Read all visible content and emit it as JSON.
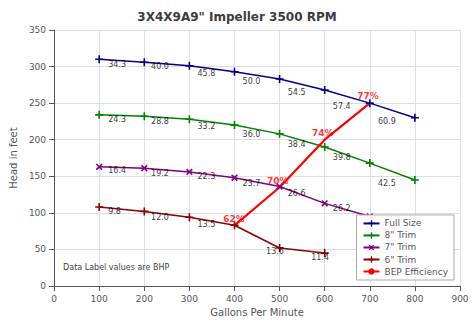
{
  "chart_data": {
    "type": "line",
    "title": "3X4X9A9\" Impeller 3500 RPM",
    "x_label": "Gallons Per Minute",
    "y_label": "Head in feet",
    "xlim": [
      0,
      900
    ],
    "ylim": [
      0,
      350
    ],
    "xticks": [
      0,
      100,
      200,
      300,
      400,
      500,
      600,
      700,
      800,
      900
    ],
    "yticks": [
      0,
      50,
      100,
      150,
      200,
      250,
      300,
      350
    ],
    "grid": true,
    "legend": "lower right",
    "series": [
      {
        "name": "Full Size",
        "color": "#00008B",
        "marker": "+",
        "x": [
          100,
          200,
          300,
          400,
          500,
          600,
          700,
          800
        ],
        "values": [
          310,
          306,
          301,
          293,
          283,
          268,
          250,
          230
        ]
      },
      {
        "name": "8\" Trim",
        "color": "#008000",
        "marker": "+",
        "x": [
          100,
          200,
          300,
          400,
          500,
          600,
          700,
          800
        ],
        "values": [
          234,
          232,
          228,
          220,
          208,
          190,
          168,
          145
        ]
      },
      {
        "name": "7\" Trim",
        "color": "#800080",
        "marker": "x",
        "x": [
          100,
          200,
          300,
          400,
          500,
          600,
          700
        ],
        "values": [
          163,
          161,
          156,
          148,
          136,
          113,
          95
        ]
      },
      {
        "name": "6\" Trim",
        "color": "#8B0000",
        "marker": "+",
        "x": [
          100,
          200,
          300,
          400,
          500,
          600
        ],
        "values": [
          108,
          102,
          94,
          83,
          52,
          45
        ]
      },
      {
        "name": "BEP Efficiency",
        "color": "#FF0000",
        "x": [
          400,
          500,
          600,
          700
        ],
        "values": [
          83,
          135,
          200,
          250
        ]
      }
    ],
    "annotations": [
      {
        "text": "62%",
        "x": 375,
        "y": 86,
        "color": "#FF0000"
      },
      {
        "text": "70%",
        "x": 472,
        "y": 138,
        "color": "#FF0000"
      },
      {
        "text": "74%",
        "x": 572,
        "y": 203,
        "color": "#FF0000"
      },
      {
        "text": "77%",
        "x": 672,
        "y": 253,
        "color": "#FF0000"
      },
      {
        "text": "34.3",
        "x": 120,
        "y": 298
      },
      {
        "text": "40.0",
        "x": 215,
        "y": 294
      },
      {
        "text": "45.8",
        "x": 318,
        "y": 285
      },
      {
        "text": "50.0",
        "x": 418,
        "y": 274
      },
      {
        "text": "54.5",
        "x": 518,
        "y": 259
      },
      {
        "text": "57.4",
        "x": 618,
        "y": 240
      },
      {
        "text": "60.9",
        "x": 718,
        "y": 219
      },
      {
        "text": "24.3",
        "x": 120,
        "y": 222
      },
      {
        "text": "28.8",
        "x": 215,
        "y": 220
      },
      {
        "text": "33.2",
        "x": 318,
        "y": 213
      },
      {
        "text": "36.0",
        "x": 418,
        "y": 202
      },
      {
        "text": "38.4",
        "x": 518,
        "y": 188
      },
      {
        "text": "39.8",
        "x": 618,
        "y": 170
      },
      {
        "text": "42.5",
        "x": 718,
        "y": 134
      },
      {
        "text": "16.4",
        "x": 120,
        "y": 152
      },
      {
        "text": "19.2",
        "x": 215,
        "y": 149
      },
      {
        "text": "22.3",
        "x": 318,
        "y": 144
      },
      {
        "text": "23.7",
        "x": 418,
        "y": 135
      },
      {
        "text": "26.6",
        "x": 518,
        "y": 121
      },
      {
        "text": "26.2",
        "x": 618,
        "y": 101
      },
      {
        "text": "9.8",
        "x": 120,
        "y": 97
      },
      {
        "text": "12.0",
        "x": 215,
        "y": 88
      },
      {
        "text": "13.5",
        "x": 318,
        "y": 78
      },
      {
        "text": "13.6",
        "x": 470,
        "y": 42
      },
      {
        "text": "11.4",
        "x": 570,
        "y": 33
      },
      {
        "text": "Data Label values are BHP",
        "x": 20,
        "y": 20
      }
    ]
  }
}
